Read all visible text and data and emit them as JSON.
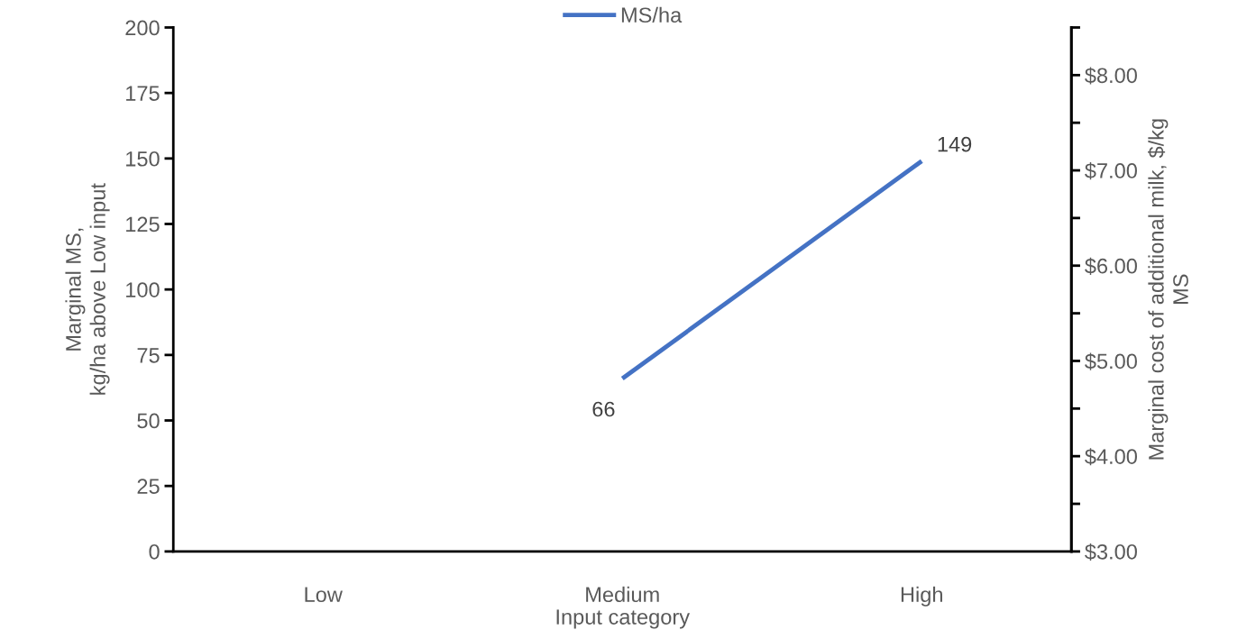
{
  "chart_data": {
    "type": "line",
    "categories": [
      "Low",
      "Medium",
      "High"
    ],
    "series": [
      {
        "name": "MS/ha",
        "color": "#4472c4",
        "values": [
          null,
          66,
          149
        ]
      }
    ],
    "xlabel": "Input category",
    "ylabel": "Marginal MS,\nkg/ha above Low input",
    "y2label": "Marginal cost of additional milk, $/kg\nMS",
    "ylim": [
      0,
      200
    ],
    "yticks": [
      0,
      25,
      50,
      75,
      100,
      125,
      150,
      175,
      200
    ],
    "y2lim": [
      3,
      8.5
    ],
    "y2ticks": [
      {
        "value": 3,
        "label": "$3.00"
      },
      {
        "value": 3.5,
        "label": null
      },
      {
        "value": 4,
        "label": "$4.00"
      },
      {
        "value": 4.5,
        "label": null
      },
      {
        "value": 5,
        "label": "$5.00"
      },
      {
        "value": 5.5,
        "label": null
      },
      {
        "value": 6,
        "label": "$6.00"
      },
      {
        "value": 6.5,
        "label": null
      },
      {
        "value": 7,
        "label": "$7.00"
      },
      {
        "value": 7.5,
        "label": null
      },
      {
        "value": 8,
        "label": "$8.00"
      },
      {
        "value": 8.5,
        "label": null
      }
    ],
    "data_labels": true,
    "legend": "top",
    "grid": false,
    "marker": "none",
    "line_style": "solid"
  }
}
